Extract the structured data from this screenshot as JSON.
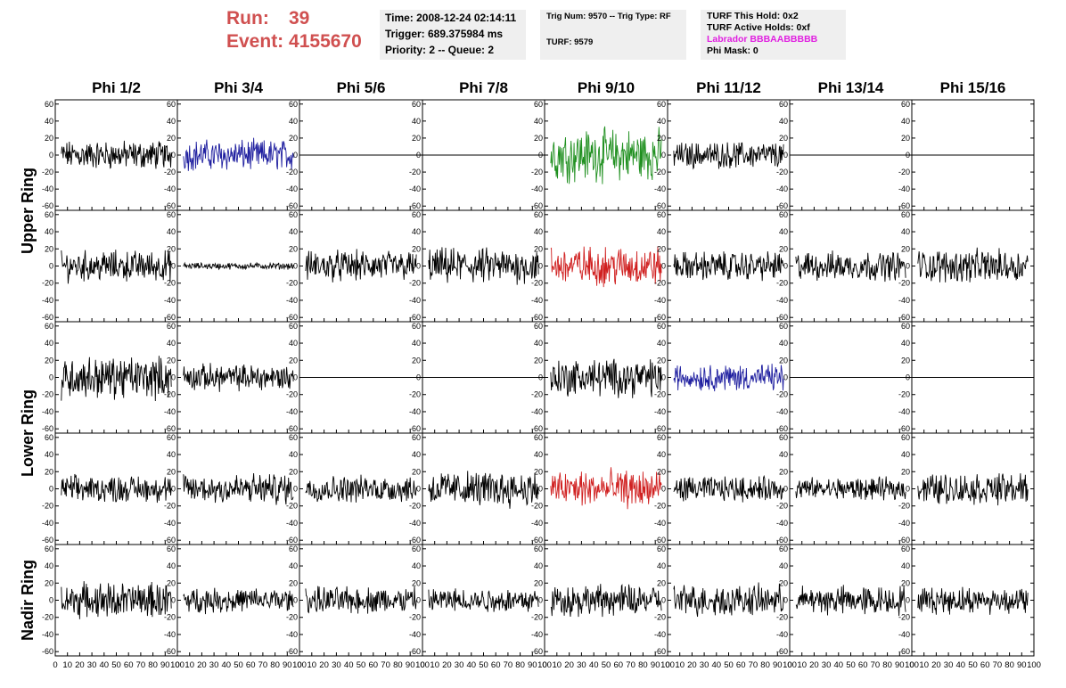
{
  "header": {
    "run_label": "Run:",
    "run_value": "39",
    "event_label": "Event:",
    "event_value": "4155670"
  },
  "info_box_1": {
    "time": "Time: 2008-12-24 02:14:11",
    "trigger": "Trigger: 689.375984 ms",
    "priority": "Priority: 2 -- Queue: 2"
  },
  "info_box_2": {
    "trig": "Trig Num: 9570 -- Trig Type: RF",
    "turf": "TURF: 9579"
  },
  "info_box_3": {
    "this_hold": "TURF This Hold: 0x2",
    "active_holds": "TURF Active Holds: 0xf",
    "labrador": "Labrador BBBAABBBBB",
    "phi_mask": "Phi Mask: 0"
  },
  "colors": {
    "run_text": "#d05050",
    "labrador": "#e020e0",
    "blue": "#2020a0",
    "green": "#209020",
    "red": "#d02020",
    "black": "#000000"
  },
  "chart_data": {
    "type": "line",
    "columns": [
      "Phi 1/2",
      "Phi 3/4",
      "Phi 5/6",
      "Phi 7/8",
      "Phi 9/10",
      "Phi 11/12",
      "Phi 13/14",
      "Phi 15/16"
    ],
    "row_groups": [
      "Upper Ring",
      "Lower Ring",
      "Nadir Ring"
    ],
    "xlim": [
      0,
      100
    ],
    "ylim": [
      -65,
      65
    ],
    "x_ticks": [
      0,
      10,
      20,
      30,
      40,
      50,
      60,
      70,
      80,
      90,
      100
    ],
    "x_tick_labels": [
      "0",
      "10",
      "20",
      "30",
      "40",
      "50",
      "60",
      "70",
      "80",
      "90",
      "100"
    ],
    "y_ticks": [
      -60,
      -40,
      -20,
      0,
      20,
      40,
      60
    ],
    "y_tick_labels": [
      "-60",
      "-40",
      "-20",
      "0",
      "20",
      "40",
      "60"
    ],
    "panels": [
      [
        {
          "color": "black",
          "amp": 13
        },
        {
          "color": "blue",
          "amp": 14
        },
        {
          "color": "black",
          "amp": 0,
          "flat": true
        },
        {
          "color": "black",
          "amp": 0,
          "flat": true
        },
        {
          "color": "green",
          "amp": 24
        },
        {
          "color": "black",
          "amp": 12
        },
        {
          "color": "black",
          "amp": 0,
          "flat": true
        },
        {
          "color": "black",
          "amp": 0,
          "flat": true
        }
      ],
      [
        {
          "color": "black",
          "amp": 14
        },
        {
          "color": "black",
          "amp": 3
        },
        {
          "color": "black",
          "amp": 14
        },
        {
          "color": "black",
          "amp": 16
        },
        {
          "color": "red",
          "amp": 18
        },
        {
          "color": "black",
          "amp": 13
        },
        {
          "color": "black",
          "amp": 13
        },
        {
          "color": "black",
          "amp": 15
        }
      ],
      [
        {
          "color": "black",
          "amp": 19
        },
        {
          "color": "black",
          "amp": 12
        },
        {
          "color": "black",
          "amp": 0,
          "flat": true
        },
        {
          "color": "black",
          "amp": 0,
          "flat": true
        },
        {
          "color": "black",
          "amp": 17
        },
        {
          "color": "blue",
          "amp": 12
        },
        {
          "color": "black",
          "amp": 0,
          "flat": true
        },
        {
          "color": "black",
          "amp": 0,
          "flat": true
        }
      ],
      [
        {
          "color": "black",
          "amp": 12
        },
        {
          "color": "black",
          "amp": 14
        },
        {
          "color": "black",
          "amp": 12
        },
        {
          "color": "black",
          "amp": 16
        },
        {
          "color": "red",
          "amp": 17
        },
        {
          "color": "black",
          "amp": 11
        },
        {
          "color": "black",
          "amp": 10
        },
        {
          "color": "black",
          "amp": 14
        }
      ],
      [
        {
          "color": "black",
          "amp": 16
        },
        {
          "color": "black",
          "amp": 11
        },
        {
          "color": "black",
          "amp": 12
        },
        {
          "color": "black",
          "amp": 11
        },
        {
          "color": "black",
          "amp": 14
        },
        {
          "color": "black",
          "amp": 14
        },
        {
          "color": "black",
          "amp": 13
        },
        {
          "color": "black",
          "amp": 12
        }
      ]
    ]
  }
}
